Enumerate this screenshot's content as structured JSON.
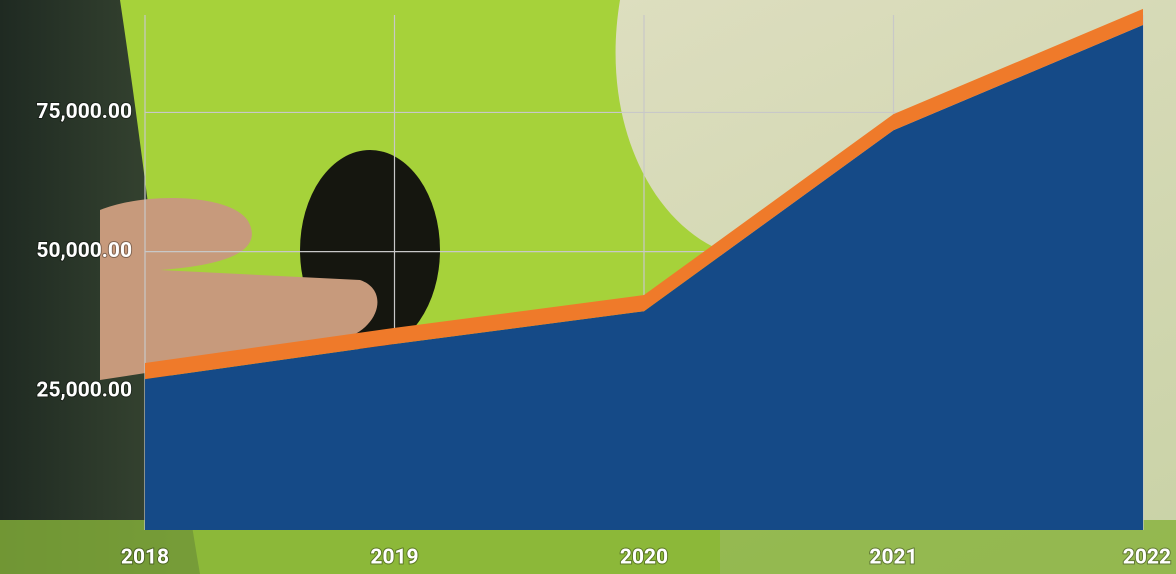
{
  "chart_data": {
    "type": "stacked-area",
    "categories": [
      "2018",
      "2019",
      "2020",
      "2021",
      "2022"
    ],
    "series": [
      {
        "color": "#154a87",
        "values": [
          27100,
          33400,
          39300,
          71800,
          90700
        ]
      },
      {
        "color": "#ef7a2a",
        "values": [
          2900,
          2900,
          2900,
          2900,
          2900
        ]
      }
    ],
    "ylim": [
      0,
      92500
    ],
    "yticks": [
      {
        "value": 25000,
        "label": "25,000.00"
      },
      {
        "value": 50000,
        "label": "50,000.00"
      },
      {
        "value": 75000,
        "label": "75,000.00"
      }
    ],
    "grid": true
  }
}
